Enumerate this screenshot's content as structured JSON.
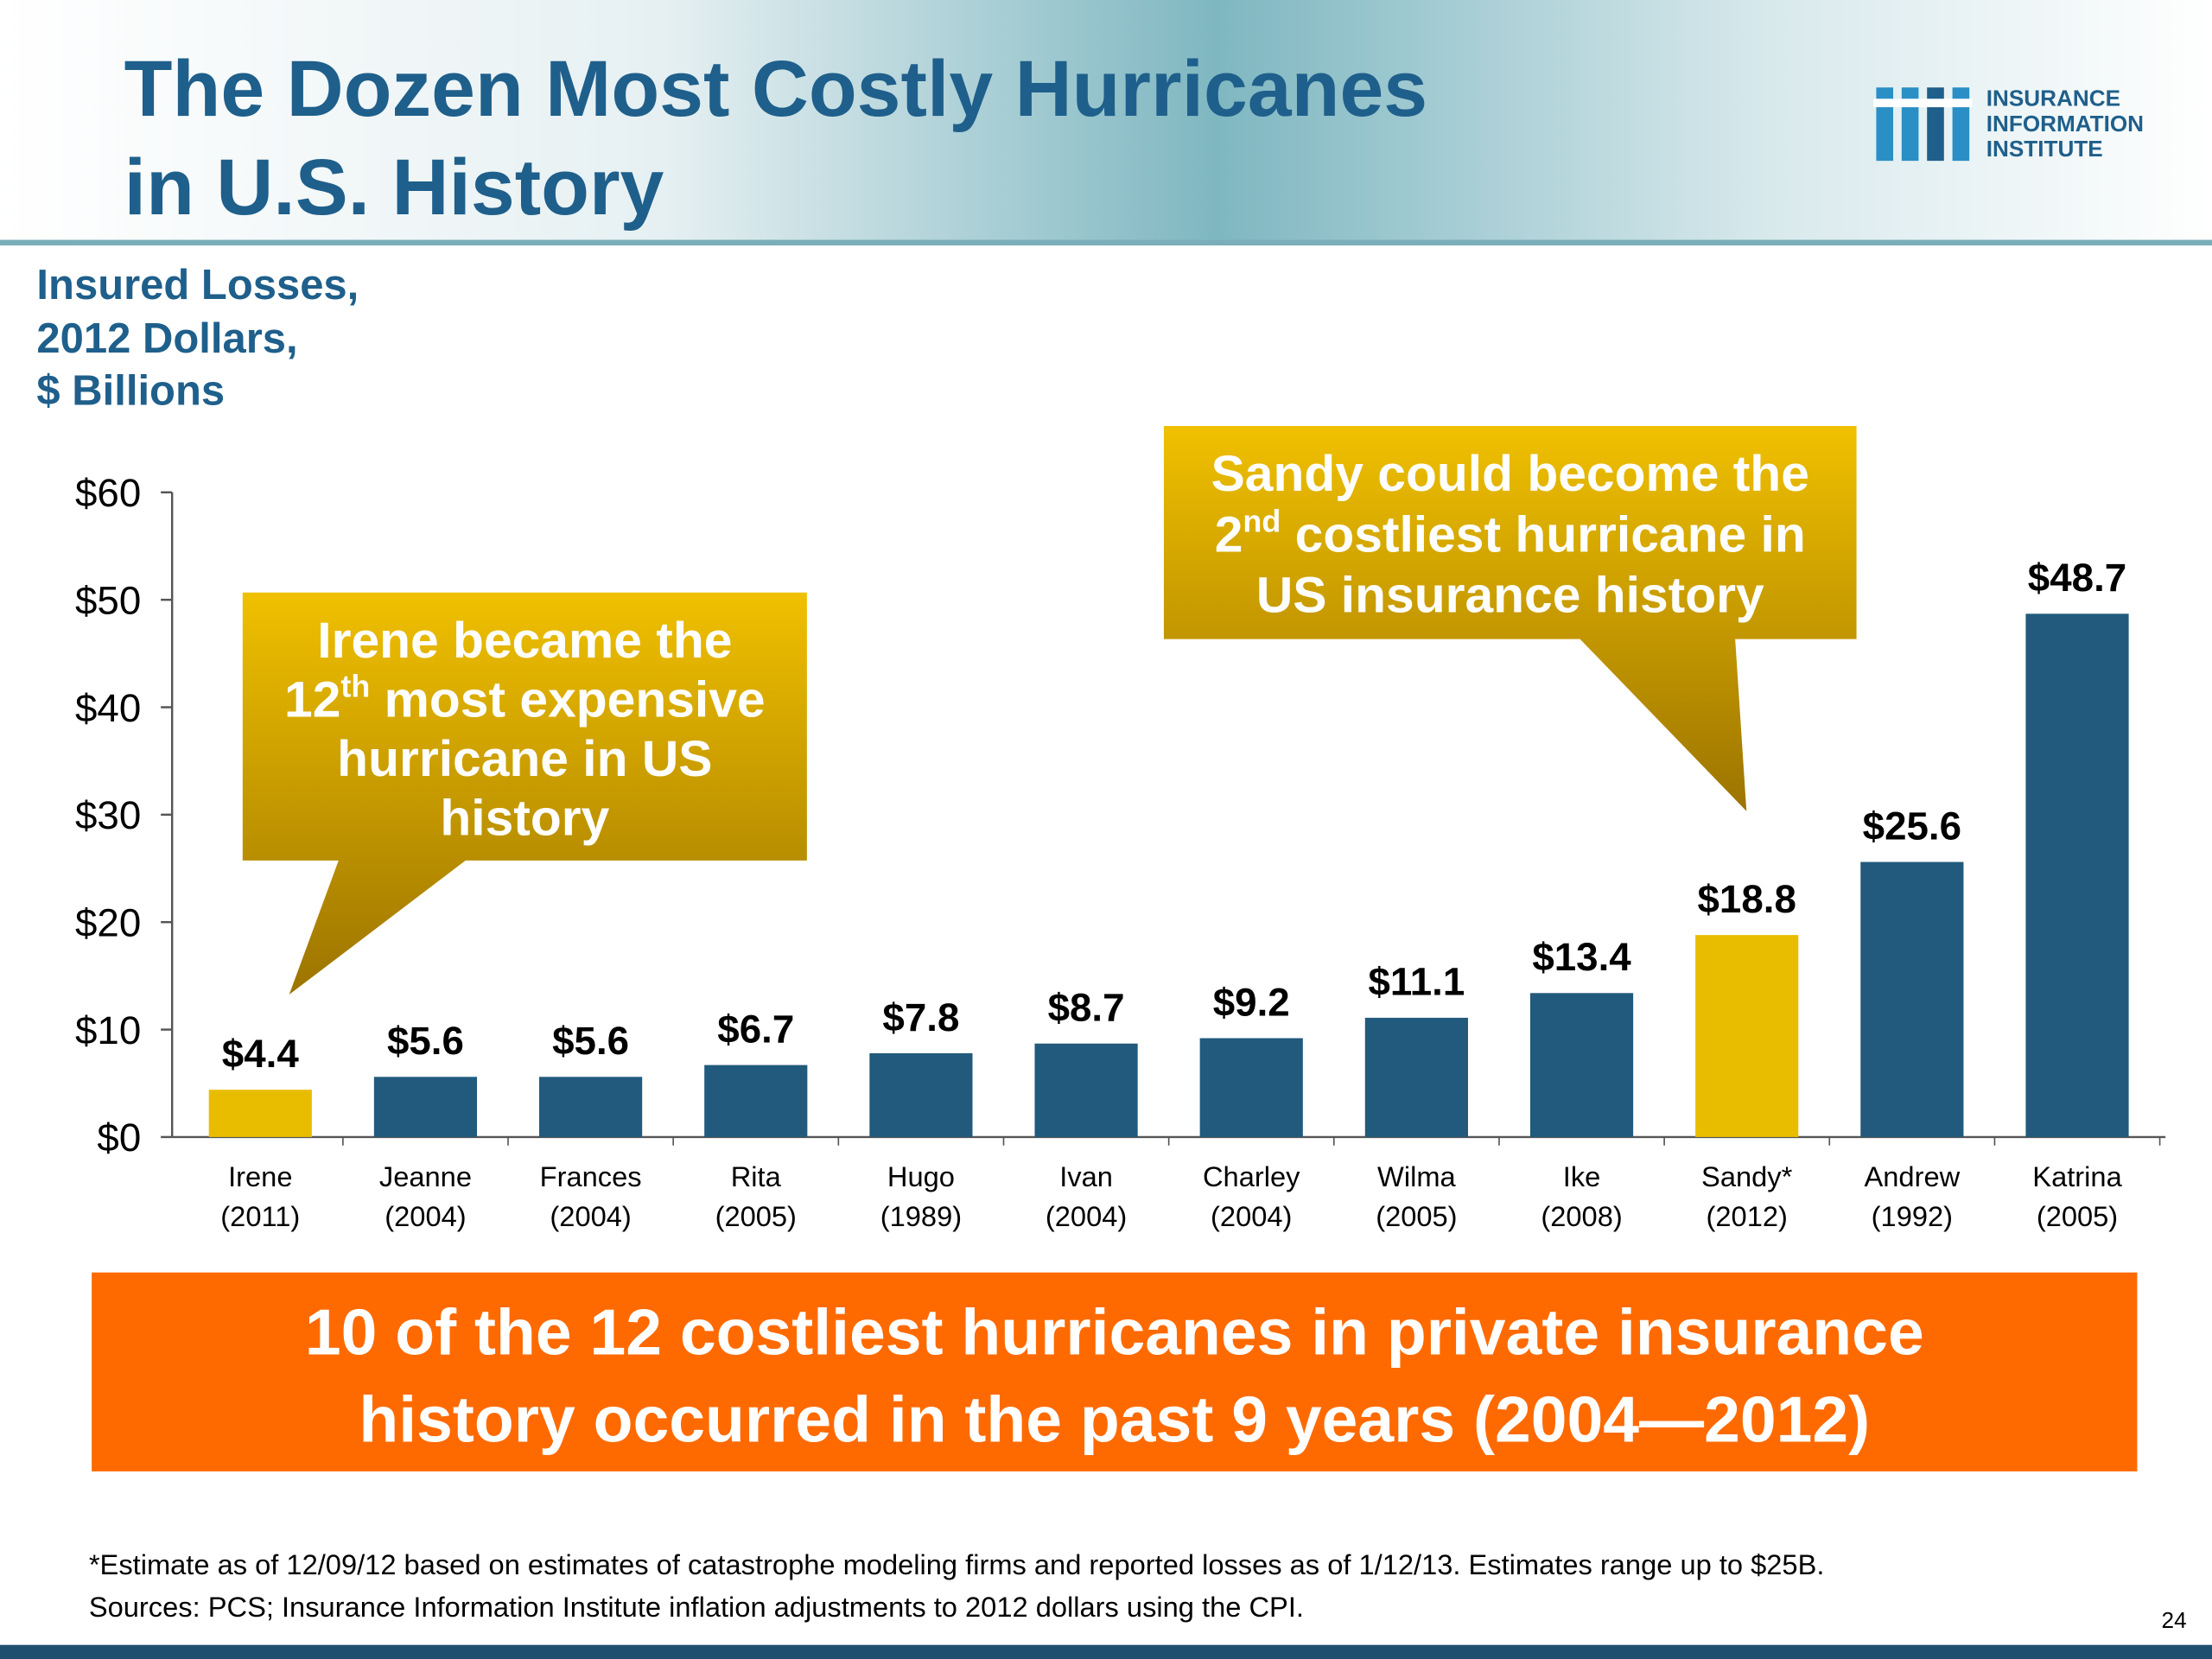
{
  "chart_data": {
    "type": "bar",
    "title": [
      "The Dozen Most Costly Hurricanes",
      "in U.S. History"
    ],
    "subtitle": [
      "Insured Losses,",
      "2012 Dollars,",
      "$ Billions"
    ],
    "logo": [
      "INSURANCE",
      "INFORMATION",
      "INSTITUTE"
    ],
    "categories": [
      [
        "Irene",
        "(2011)"
      ],
      [
        "Jeanne",
        "(2004)"
      ],
      [
        "Frances",
        "(2004)"
      ],
      [
        "Rita",
        "(2005)"
      ],
      [
        "Hugo",
        "(1989)"
      ],
      [
        "Ivan",
        "(2004)"
      ],
      [
        "Charley",
        "(2004)"
      ],
      [
        "Wilma",
        "(2005)"
      ],
      [
        "Ike",
        "(2008)"
      ],
      [
        "Sandy*",
        "(2012)"
      ],
      [
        "Andrew",
        "(1992)"
      ],
      [
        "Katrina",
        "(2005)"
      ]
    ],
    "values": [
      4.4,
      5.6,
      5.6,
      6.7,
      7.8,
      8.7,
      9.2,
      11.1,
      13.4,
      18.8,
      25.6,
      48.7
    ],
    "value_labels": [
      "$4.4",
      "$5.6",
      "$5.6",
      "$6.7",
      "$7.8",
      "$8.7",
      "$9.2",
      "$11.1",
      "$13.4",
      "$18.8",
      "$25.6",
      "$48.7"
    ],
    "colors": [
      "#e8bd00",
      "#215a7c",
      "#215a7c",
      "#215a7c",
      "#215a7c",
      "#215a7c",
      "#215a7c",
      "#215a7c",
      "#215a7c",
      "#e8bd00",
      "#215a7c",
      "#215a7c"
    ],
    "ylim": [
      0,
      60
    ],
    "yticks": [
      {
        "value": 0,
        "label": "$0"
      },
      {
        "value": 10,
        "label": "$10"
      },
      {
        "value": 20,
        "label": "$20"
      },
      {
        "value": 30,
        "label": "$30"
      },
      {
        "value": 40,
        "label": "$40"
      },
      {
        "value": 50,
        "label": "$50"
      },
      {
        "value": 60,
        "label": "$60"
      }
    ],
    "annotations": [
      {
        "lines": [
          [
            "Irene became the"
          ],
          [
            "12",
            "th",
            " most expensive"
          ],
          [
            "hurricane in US"
          ],
          [
            "history"
          ]
        ]
      },
      {
        "lines": [
          [
            "Sandy could become the"
          ],
          [
            "2",
            "nd",
            " costliest hurricane in"
          ],
          [
            "US insurance history"
          ]
        ]
      }
    ],
    "banner": [
      "10 of the 12 costliest hurricanes in private insurance",
      "history occurred in the past 9 years (2004—2012)"
    ],
    "footnote": [
      "*Estimate as of 12/09/12 based on estimates of catastrophe modeling firms and reported losses as of 1/12/13. Estimates range up to $25B.",
      "Sources: PCS; Insurance Information Institute inflation adjustments to 2012 dollars using the CPI."
    ],
    "page_number": "24"
  }
}
